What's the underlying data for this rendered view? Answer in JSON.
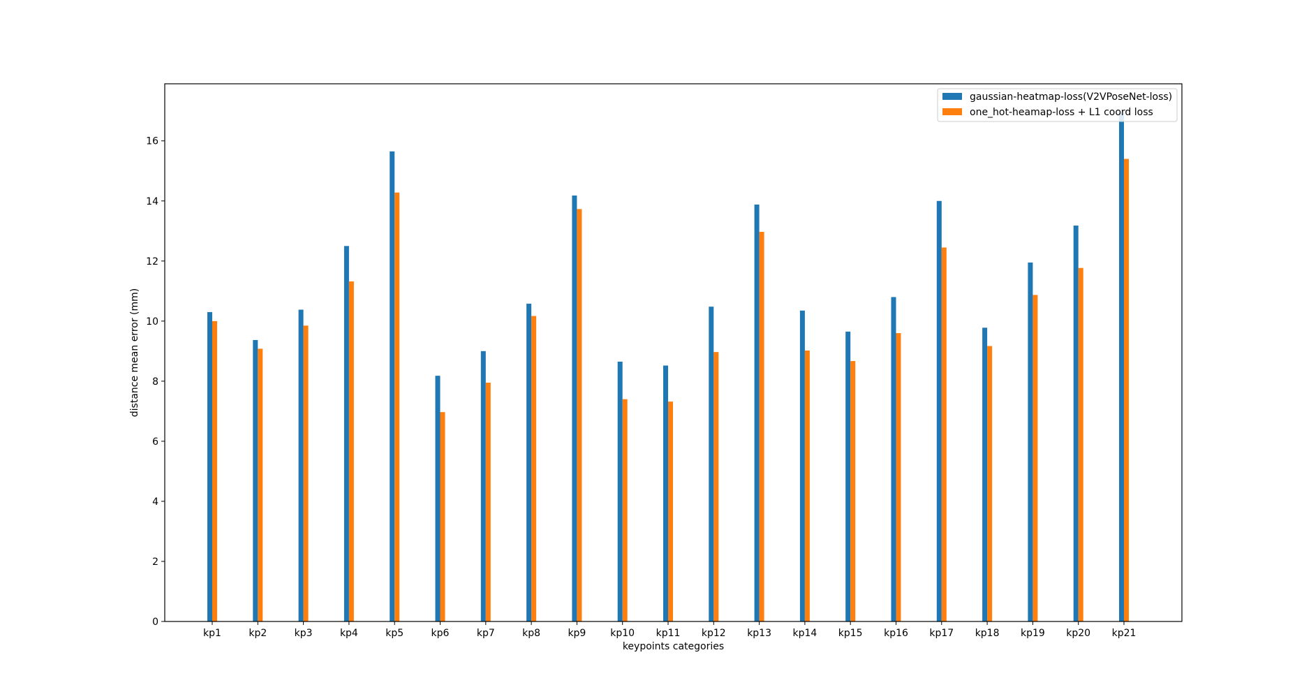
{
  "chart_data": {
    "type": "bar",
    "title": "",
    "xlabel": "keypoints categories",
    "ylabel": "distance mean error (mm)",
    "ylim": [
      0,
      17.9
    ],
    "yticks": [
      0,
      2,
      4,
      6,
      8,
      10,
      12,
      14,
      16
    ],
    "grid": false,
    "legend_position": "top-right",
    "categories": [
      "kp1",
      "kp2",
      "kp3",
      "kp4",
      "kp5",
      "kp6",
      "kp7",
      "kp8",
      "kp9",
      "kp10",
      "kp11",
      "kp12",
      "kp13",
      "kp14",
      "kp15",
      "kp16",
      "kp17",
      "kp18",
      "kp19",
      "kp20",
      "kp21"
    ],
    "series": [
      {
        "name": "gaussian-heatmap-loss(V2VPoseNet-loss)",
        "color": "#1f77b4",
        "values": [
          10.3,
          9.37,
          10.38,
          12.5,
          15.65,
          8.18,
          9.0,
          10.58,
          14.18,
          8.65,
          8.52,
          10.48,
          13.88,
          10.35,
          9.65,
          10.8,
          14.0,
          9.78,
          11.95,
          13.18,
          16.95
        ]
      },
      {
        "name": "one_hot-heamap-loss + L1 coord loss",
        "color": "#ff7f0e",
        "values": [
          10.0,
          9.08,
          9.85,
          11.32,
          14.28,
          6.97,
          7.95,
          10.17,
          13.73,
          7.4,
          7.32,
          8.97,
          12.97,
          9.02,
          8.67,
          9.6,
          12.45,
          9.17,
          10.87,
          11.77,
          15.4
        ]
      }
    ]
  }
}
